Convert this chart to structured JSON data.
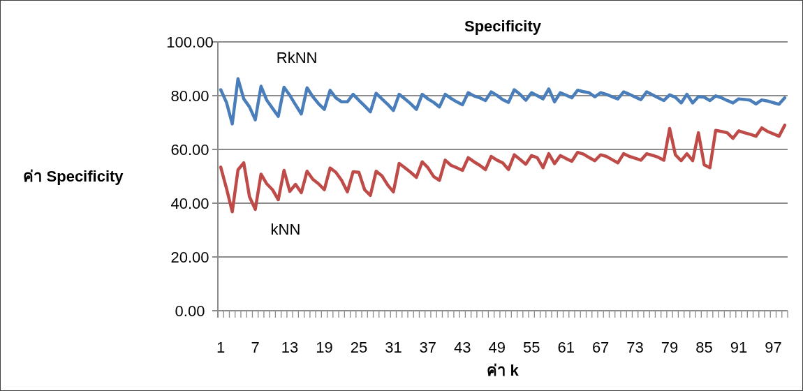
{
  "chart_data": {
    "type": "line",
    "title": "Specificity",
    "xlabel": "ค่า k",
    "ylabel": "ค่า Specificity",
    "categories": [
      "1",
      null,
      null,
      null,
      null,
      null,
      "7",
      null,
      null,
      null,
      null,
      null,
      "13",
      null,
      null,
      null,
      null,
      null,
      "19",
      null,
      null,
      null,
      null,
      null,
      "25",
      null,
      null,
      null,
      null,
      null,
      "31",
      null,
      null,
      null,
      null,
      null,
      "37",
      null,
      null,
      null,
      null,
      null,
      "43",
      null,
      null,
      null,
      null,
      null,
      "49",
      null,
      null,
      null,
      null,
      null,
      "55",
      null,
      null,
      null,
      null,
      null,
      "61",
      null,
      null,
      null,
      null,
      null,
      "67",
      null,
      null,
      null,
      null,
      null,
      "73",
      null,
      null,
      null,
      null,
      null,
      "79",
      null,
      null,
      null,
      null,
      null,
      "85",
      null,
      null,
      null,
      null,
      null,
      "91",
      null,
      null,
      null,
      null,
      null,
      "97",
      null,
      null
    ],
    "ylim": [
      0,
      100
    ],
    "yticks": [
      {
        "value": 0,
        "label": "0.00"
      },
      {
        "value": 20,
        "label": "20.00"
      },
      {
        "value": 40,
        "label": "40.00"
      },
      {
        "value": 60,
        "label": "60.00"
      },
      {
        "value": 80,
        "label": "80.00"
      },
      {
        "value": 100,
        "label": "100.00"
      }
    ],
    "grid": "y",
    "line_style": "solid",
    "series": [
      {
        "name": "RkNN",
        "color": "#4a7ebb",
        "values": [
          82.2,
          77.5,
          69.5,
          86.3,
          78.8,
          75.8,
          71,
          83.5,
          78.3,
          75.3,
          72.3,
          83.1,
          80.1,
          76.6,
          73.2,
          82.9,
          79.6,
          77,
          74.9,
          82,
          79.2,
          77.7,
          77.7,
          80.5,
          78.3,
          76.2,
          74,
          80.9,
          78.8,
          76.8,
          74.5,
          80.5,
          78.8,
          77,
          74.9,
          80.5,
          78.8,
          77.5,
          75.8,
          80.5,
          79,
          77.7,
          76.6,
          81.1,
          79.9,
          79.2,
          78.2,
          81.4,
          80.1,
          78.5,
          77.5,
          82.2,
          80.5,
          78.3,
          81.1,
          80,
          78.8,
          82.5,
          77.7,
          81.1,
          80.2,
          79.2,
          82,
          81.5,
          81.1,
          79.6,
          81.1,
          80.5,
          79.6,
          78.8,
          81.4,
          80.5,
          79.5,
          78.5,
          81.4,
          80.3,
          79.2,
          78.2,
          80.3,
          79.4,
          77.3,
          80.5,
          77.3,
          79.6,
          79.4,
          78.2,
          79.9,
          79.2,
          78.2,
          77.3,
          78.8,
          78.6,
          78.3,
          76.9,
          78.4,
          78,
          77.4,
          76.8,
          79.2
        ]
      },
      {
        "name": "kNN",
        "color": "#be4b48",
        "values": [
          53.4,
          45.5,
          36.8,
          52.4,
          55,
          42.4,
          37.7,
          50.8,
          47.2,
          45,
          41.3,
          52.2,
          44.4,
          47,
          43.9,
          51.9,
          48.9,
          47.2,
          45,
          53.1,
          51.5,
          48.5,
          44.2,
          51.7,
          51.5,
          45,
          42.9,
          51.9,
          50.2,
          46.8,
          44.2,
          54.8,
          53.2,
          51.5,
          49.6,
          55.4,
          53.2,
          49.9,
          48.5,
          56,
          54.1,
          53.2,
          52.2,
          56.9,
          55.4,
          54.1,
          52.5,
          57.4,
          56,
          55,
          52.5,
          58,
          56.3,
          54.5,
          57.7,
          56.9,
          53.2,
          58.4,
          54.7,
          57.7,
          56.6,
          55.6,
          58.9,
          58.3,
          57,
          55.8,
          58,
          57.4,
          56.2,
          55,
          58.4,
          57.4,
          56.7,
          56,
          58.4,
          57.8,
          57.1,
          56,
          67.8,
          58,
          55.8,
          58.4,
          55.8,
          66.2,
          54.3,
          53.2,
          67.1,
          66.7,
          66.2,
          64.1,
          66.9,
          66.2,
          65.6,
          64.9,
          68,
          66.7,
          65.8,
          64.9,
          69
        ]
      }
    ]
  }
}
